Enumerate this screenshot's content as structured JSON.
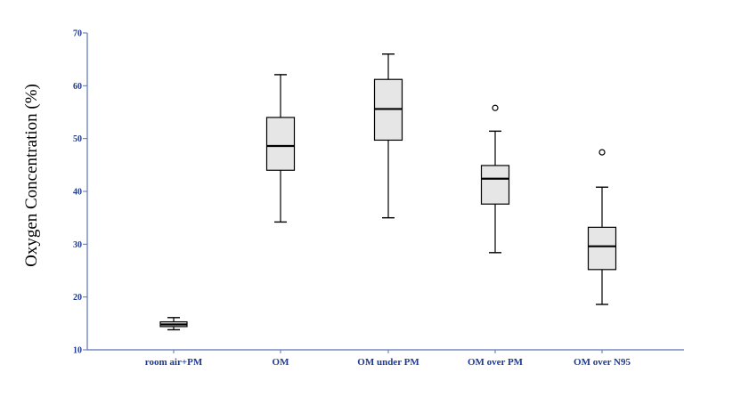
{
  "chart_data": {
    "type": "boxplot",
    "title": "",
    "xlabel": "",
    "ylabel": "Oxygen Concentration (%)",
    "ylim": [
      10,
      70
    ],
    "yticks": [
      10,
      20,
      30,
      40,
      50,
      60,
      70
    ],
    "grid": false,
    "categories": [
      "room air+PM",
      "OM",
      "OM under PM",
      "OM over PM",
      "OM over N95"
    ],
    "boxes": [
      {
        "min": 13.8,
        "q1": 14.4,
        "median": 14.8,
        "q3": 15.3,
        "max": 16.1,
        "outliers": []
      },
      {
        "min": 34.2,
        "q1": 44.0,
        "median": 48.6,
        "q3": 54.0,
        "max": 62.1,
        "outliers": []
      },
      {
        "min": 35.0,
        "q1": 49.7,
        "median": 55.6,
        "q3": 61.2,
        "max": 66.0,
        "outliers": []
      },
      {
        "min": 28.4,
        "q1": 37.6,
        "median": 42.4,
        "q3": 44.9,
        "max": 51.4,
        "outliers": [
          55.8
        ]
      },
      {
        "min": 18.6,
        "q1": 25.2,
        "median": 29.6,
        "q3": 33.2,
        "max": 40.8,
        "outliers": [
          47.4
        ]
      }
    ],
    "colors": {
      "box_fill": "#e6e6e6",
      "axis": "#5b73b8",
      "tick_text": "#1f3a93",
      "stroke": "#000000"
    }
  }
}
